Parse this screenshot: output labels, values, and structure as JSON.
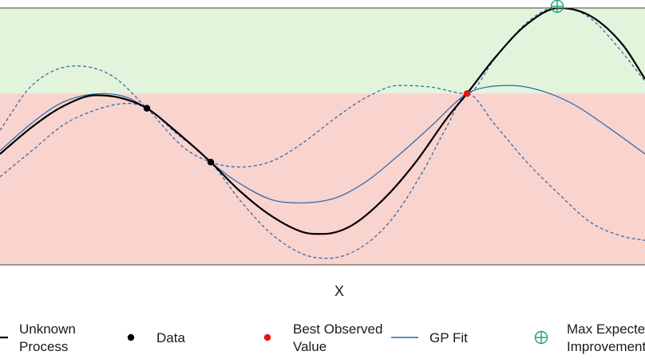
{
  "chart_data": {
    "type": "line",
    "xlabel": "X",
    "ylabel": "",
    "title": "",
    "xlim": [
      0,
      808
    ],
    "ylim": [
      -1.6,
      1.55
    ],
    "grid": false,
    "regions": {
      "best_observed_value": 0.5,
      "improvement_color": "#e3f4dc",
      "no_improvement_color": "#f9d3ce"
    },
    "series": [
      {
        "name": "Unknown Process",
        "color": "#000000",
        "style": "solid",
        "x": [
          0,
          40,
          80,
          120,
          150,
          184,
          220,
          264,
          300,
          340,
          380,
          405,
          440,
          480,
          520,
          560,
          585,
          620,
          660,
          700,
          740,
          780,
          808
        ],
        "y": [
          -0.24,
          0.09,
          0.35,
          0.48,
          0.45,
          0.32,
          0.04,
          -0.34,
          -0.69,
          -1.0,
          -1.2,
          -1.22,
          -1.12,
          -0.8,
          -0.35,
          0.2,
          0.5,
          0.94,
          1.35,
          1.55,
          1.45,
          1.1,
          0.68
        ]
      },
      {
        "name": "GP Fit",
        "color": "#2166ac",
        "style": "solid",
        "x": [
          0,
          40,
          80,
          130,
          160,
          184,
          220,
          264,
          300,
          340,
          375,
          420,
          460,
          500,
          540,
          585,
          610,
          640,
          680,
          720,
          760,
          808
        ],
        "y": [
          -0.2,
          0.14,
          0.4,
          0.5,
          0.45,
          0.32,
          0.05,
          -0.34,
          -0.6,
          -0.8,
          -0.84,
          -0.78,
          -0.57,
          -0.25,
          0.1,
          0.5,
          0.58,
          0.6,
          0.53,
          0.36,
          0.1,
          -0.24
        ]
      },
      {
        "name": "GP Upper Band",
        "color": "#2166ac",
        "style": "dashed",
        "x": [
          0,
          40,
          95,
          140,
          184,
          230,
          264,
          300,
          340,
          380,
          420,
          460,
          500,
          540,
          585,
          620,
          660,
          700,
          740,
          780,
          808
        ],
        "y": [
          0.05,
          0.6,
          0.84,
          0.72,
          0.32,
          -0.16,
          -0.34,
          -0.4,
          -0.33,
          -0.1,
          0.2,
          0.46,
          0.6,
          0.58,
          0.5,
          0.93,
          1.37,
          1.57,
          1.42,
          1.0,
          0.65
        ]
      },
      {
        "name": "GP Lower Band",
        "color": "#2166ac",
        "style": "dashed",
        "x": [
          0,
          40,
          80,
          120,
          160,
          184,
          220,
          264,
          300,
          340,
          380,
          410,
          450,
          490,
          530,
          560,
          585,
          620,
          660,
          700,
          740,
          780,
          808
        ],
        "y": [
          -0.52,
          -0.2,
          0.12,
          0.3,
          0.38,
          0.32,
          0.02,
          -0.34,
          -0.8,
          -1.22,
          -1.47,
          -1.52,
          -1.4,
          -1.05,
          -0.45,
          0.1,
          0.5,
          0.12,
          -0.34,
          -0.73,
          -1.08,
          -1.25,
          -1.3
        ]
      }
    ],
    "points": {
      "data": [
        {
          "x": 184,
          "y": 0.32
        },
        {
          "x": 264,
          "y": -0.34
        }
      ],
      "best_observed": {
        "x": 585,
        "y": 0.5
      },
      "max_expected_improvement": {
        "x": 698,
        "y": 1.57
      }
    },
    "legend": {
      "placement": "bottom",
      "entries": [
        {
          "key": "unknown",
          "label_line1": "Unknown",
          "label_line2": "Process"
        },
        {
          "key": "data",
          "label_line1": "Data",
          "label_line2": ""
        },
        {
          "key": "best",
          "label_line1": "Best Observed",
          "label_line2": "Value"
        },
        {
          "key": "gp",
          "label_line1": "GP Fit",
          "label_line2": ""
        },
        {
          "key": "maxei",
          "label_line1": "Max Expected",
          "label_line2": "Improvement"
        }
      ]
    },
    "colors": {
      "unknown_process": "#000000",
      "data_point": "#000000",
      "best_point": "#ee1111",
      "gp_fit": "#2166ac",
      "max_ei": "#1aa37a",
      "axis": "#444444"
    }
  }
}
